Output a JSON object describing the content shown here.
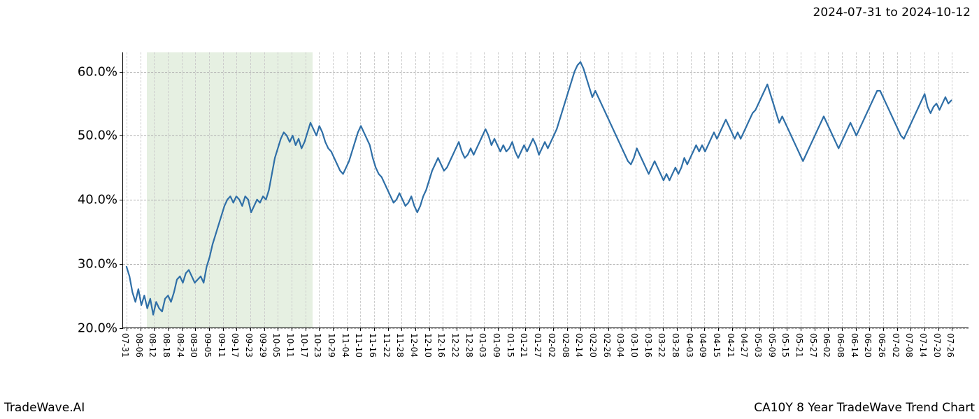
{
  "header": {
    "date_range": "2024-07-31 to 2024-10-12"
  },
  "footer": {
    "brand": "TradeWave.AI",
    "title": "CA10Y 8 Year TradeWave Trend Chart"
  },
  "chart": {
    "type": "line",
    "background_color": "#ffffff",
    "highlight_band": {
      "color": "#d9e8d3",
      "opacity": 0.65,
      "x_start_index": 2,
      "x_end_index": 13
    },
    "y_axis": {
      "min": 20.0,
      "max": 63.0,
      "ticks": [
        20.0,
        30.0,
        40.0,
        50.0,
        60.0
      ],
      "tick_labels": [
        "20.0%",
        "30.0%",
        "40.0%",
        "50.0%",
        "60.0%"
      ],
      "label_fontsize": 18,
      "grid_color": "#b0b0b0",
      "grid_dash": true
    },
    "x_axis": {
      "labels": [
        "07-31",
        "08-06",
        "08-12",
        "08-18",
        "08-24",
        "08-30",
        "09-05",
        "09-11",
        "09-17",
        "09-23",
        "09-29",
        "10-05",
        "10-11",
        "10-17",
        "10-23",
        "10-29",
        "11-04",
        "11-10",
        "11-16",
        "11-22",
        "11-28",
        "12-04",
        "12-10",
        "12-16",
        "12-22",
        "12-28",
        "01-03",
        "01-09",
        "01-15",
        "01-21",
        "01-27",
        "02-02",
        "02-08",
        "02-14",
        "02-20",
        "02-26",
        "03-04",
        "03-10",
        "03-16",
        "03-22",
        "03-28",
        "04-03",
        "04-09",
        "04-15",
        "04-21",
        "04-27",
        "05-03",
        "05-09",
        "05-15",
        "05-21",
        "05-27",
        "06-02",
        "06-08",
        "06-14",
        "06-20",
        "06-26",
        "07-02",
        "07-08",
        "07-14",
        "07-20",
        "07-26"
      ],
      "label_fontsize": 12,
      "grid_color": "#cccccc",
      "grid_dash": true
    },
    "series": {
      "color": "#2f6fa7",
      "width": 2.2,
      "data": [
        29.5,
        28.0,
        25.5,
        24.0,
        26.0,
        23.5,
        25.0,
        23.0,
        24.5,
        22.0,
        24.0,
        23.0,
        22.5,
        24.5,
        25.0,
        24.0,
        25.5,
        27.5,
        28.0,
        27.0,
        28.5,
        29.0,
        28.0,
        27.0,
        27.5,
        28.0,
        27.0,
        29.5,
        31.0,
        33.0,
        34.5,
        36.0,
        37.5,
        39.0,
        40.0,
        40.5,
        39.5,
        40.5,
        40.0,
        39.0,
        40.5,
        40.0,
        38.0,
        39.0,
        40.0,
        39.5,
        40.5,
        40.0,
        41.5,
        44.0,
        46.5,
        48.0,
        49.5,
        50.5,
        50.0,
        49.0,
        50.0,
        48.5,
        49.5,
        48.0,
        49.0,
        50.5,
        52.0,
        51.0,
        50.0,
        51.5,
        50.5,
        49.0,
        48.0,
        47.5,
        46.5,
        45.5,
        44.5,
        44.0,
        45.0,
        46.0,
        47.5,
        49.0,
        50.5,
        51.5,
        50.5,
        49.5,
        48.5,
        46.5,
        45.0,
        44.0,
        43.5,
        42.5,
        41.5,
        40.5,
        39.5,
        40.0,
        41.0,
        40.0,
        39.0,
        39.5,
        40.5,
        39.0,
        38.0,
        39.0,
        40.5,
        41.5,
        43.0,
        44.5,
        45.5,
        46.5,
        45.5,
        44.5,
        45.0,
        46.0,
        47.0,
        48.0,
        49.0,
        47.5,
        46.5,
        47.0,
        48.0,
        47.0,
        48.0,
        49.0,
        50.0,
        51.0,
        50.0,
        48.5,
        49.5,
        48.5,
        47.5,
        48.5,
        47.5,
        48.0,
        49.0,
        47.5,
        46.5,
        47.5,
        48.5,
        47.5,
        48.5,
        49.5,
        48.5,
        47.0,
        48.0,
        49.0,
        48.0,
        49.0,
        50.0,
        51.0,
        52.5,
        54.0,
        55.5,
        57.0,
        58.5,
        60.0,
        61.0,
        61.5,
        60.5,
        59.0,
        57.5,
        56.0,
        57.0,
        56.0,
        55.0,
        54.0,
        53.0,
        52.0,
        51.0,
        50.0,
        49.0,
        48.0,
        47.0,
        46.0,
        45.5,
        46.5,
        48.0,
        47.0,
        46.0,
        45.0,
        44.0,
        45.0,
        46.0,
        45.0,
        44.0,
        43.0,
        44.0,
        43.0,
        44.0,
        45.0,
        44.0,
        45.0,
        46.5,
        45.5,
        46.5,
        47.5,
        48.5,
        47.5,
        48.5,
        47.5,
        48.5,
        49.5,
        50.5,
        49.5,
        50.5,
        51.5,
        52.5,
        51.5,
        50.5,
        49.5,
        50.5,
        49.5,
        50.5,
        51.5,
        52.5,
        53.5,
        54.0,
        55.0,
        56.0,
        57.0,
        58.0,
        56.5,
        55.0,
        53.5,
        52.0,
        53.0,
        52.0,
        51.0,
        50.0,
        49.0,
        48.0,
        47.0,
        46.0,
        47.0,
        48.0,
        49.0,
        50.0,
        51.0,
        52.0,
        53.0,
        52.0,
        51.0,
        50.0,
        49.0,
        48.0,
        49.0,
        50.0,
        51.0,
        52.0,
        51.0,
        50.0,
        51.0,
        52.0,
        53.0,
        54.0,
        55.0,
        56.0,
        57.0,
        57.0,
        56.0,
        55.0,
        54.0,
        53.0,
        52.0,
        51.0,
        50.0,
        49.5,
        50.5,
        51.5,
        52.5,
        53.5,
        54.5,
        55.5,
        56.5,
        54.5,
        53.5,
        54.5,
        55.0,
        54.0,
        55.0,
        56.0,
        55.0,
        55.5
      ]
    }
  }
}
